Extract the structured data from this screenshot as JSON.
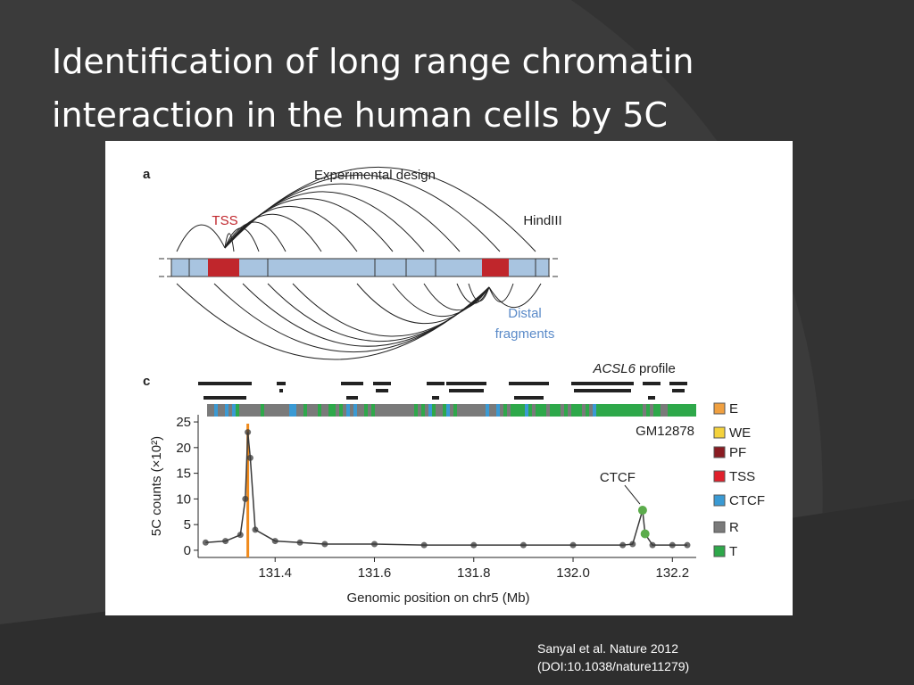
{
  "slide": {
    "title_lines": [
      "Identification of long range chromatin",
      "interaction in the human cells by 5C"
    ],
    "citation_lines": [
      "Sanyal et al. Nature 2012",
      "(DOI:10.1038/nature11279)"
    ]
  },
  "panel_a": {
    "label": "a",
    "title": "Experimental design",
    "tss": "TSS",
    "enzyme": "HindIII",
    "distal_lines": [
      "Distal",
      "fragments"
    ]
  },
  "panel_c": {
    "label": "c",
    "profile_gene": "ACSL6",
    "profile_word": "profile",
    "cell_line": "GM12878",
    "legend": [
      {
        "label": "E",
        "color": "#f0a040"
      },
      {
        "label": "WE",
        "color": "#f4d23c"
      },
      {
        "label": "PF",
        "color": "#8a1c22"
      },
      {
        "label": "TSS",
        "color": "#e0202c"
      },
      {
        "label": "CTCF",
        "color": "#3a9ad4"
      },
      {
        "label": "R",
        "color": "#7a7a7a"
      },
      {
        "label": "T",
        "color": "#2ea84a"
      }
    ]
  },
  "chart_data": {
    "type": "line",
    "xlabel": "Genomic position on chr5 (Mb)",
    "ylabel": "5C counts (×10²)",
    "xlim": [
      131.245,
      132.248
    ],
    "ylim": [
      -1.4,
      26.4
    ],
    "xticks": [
      131.4,
      131.6,
      131.8,
      {
        "value": 132.0,
        "label": "132.0"
      },
      132.2
    ],
    "yticks": [
      0,
      5,
      10,
      15,
      20,
      25
    ],
    "annotation": "CTCF",
    "vline": {
      "x": 131.345,
      "color": "#f08a1c"
    },
    "series": [
      {
        "color": "#3a3a3a",
        "x": [
          131.26,
          131.3,
          131.33,
          131.34,
          131.345,
          131.35,
          131.36,
          131.4,
          131.45,
          131.5,
          131.6,
          131.7,
          131.8,
          131.9,
          132.0,
          132.1,
          132.12,
          132.14,
          132.145,
          132.16,
          132.2,
          132.23
        ],
        "values": [
          1.5,
          1.8,
          3,
          10,
          23,
          18,
          4,
          1.8,
          1.5,
          1.2,
          1.2,
          1,
          1,
          1,
          1,
          1,
          1.2,
          7.8,
          3.2,
          1,
          1,
          1
        ]
      },
      {
        "color": "#5cac4c",
        "x": [
          132.14,
          132.145
        ],
        "values": [
          7.8,
          3.2
        ]
      }
    ]
  }
}
